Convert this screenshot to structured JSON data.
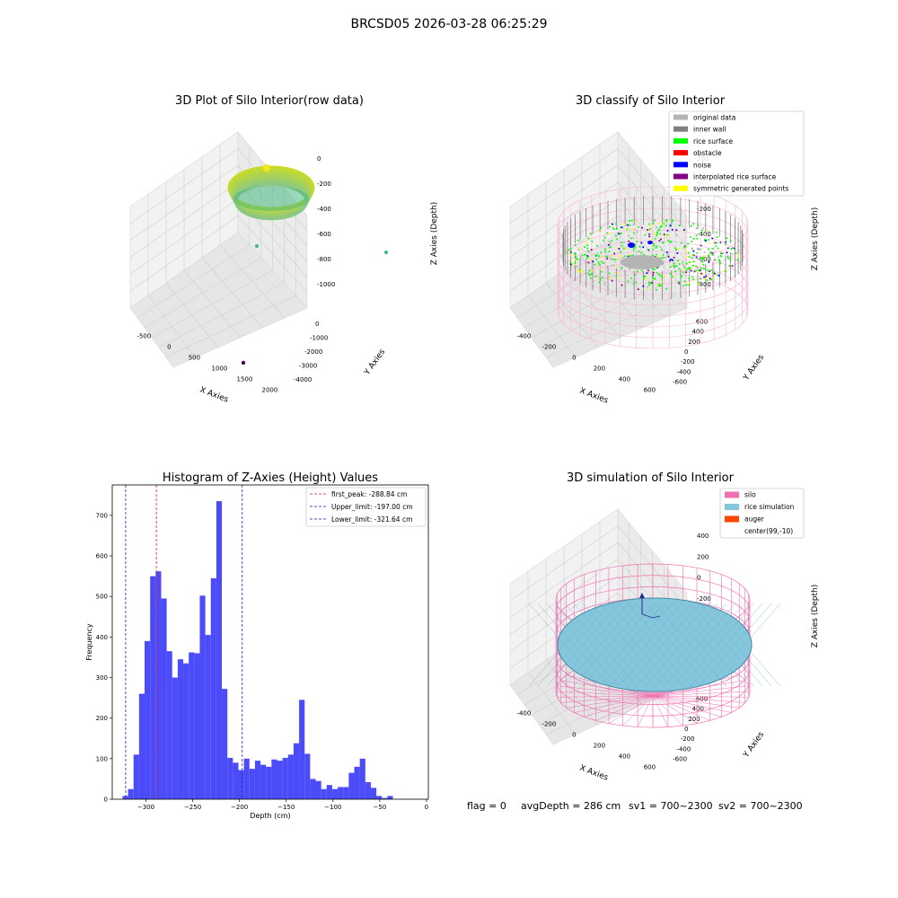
{
  "suptitle": "BRCSD05 2026-03-28 06:25:29",
  "footer": {
    "flag": "flag = 0",
    "avg_depth": "avgDepth = 286 cm",
    "sv1": "sv1 = 700~2300",
    "sv2": "sv2 = 700~2300"
  },
  "colors": {
    "hist_bar": "#4b4bfa",
    "peak_line": "#e41a1c",
    "limit_line": "#1f1fb4",
    "silo_wire": "#f06fb0",
    "rice_sim": "#86c6dc",
    "auger": "#ff4500",
    "original": "#b4b4b4",
    "inner_wall": "#808080",
    "rice_surface": "#00ff00",
    "obstacle": "#ff0000",
    "noise": "#0000ff",
    "interp": "#800080",
    "symmetric": "#ffff00"
  },
  "chart_data": [
    {
      "type": "scatter",
      "title": "3D Plot of Silo Interior(row data)",
      "xlabel": "X Axies",
      "ylabel": "Y Axies",
      "zlabel": "Z Axies (Depth)",
      "x_ticks": [
        "-500",
        "0",
        "500",
        "1000",
        "1500",
        "2000"
      ],
      "y_ticks": [
        "0",
        "-1000",
        "-2000",
        "-3000",
        "-4000"
      ],
      "z_ticks": [
        "0",
        "-200",
        "-400",
        "-600",
        "-800",
        "-1000"
      ],
      "outliers": [
        {
          "x": 100,
          "y": -1000,
          "z": -550
        },
        {
          "x": 1700,
          "y": -300,
          "z": -600
        },
        {
          "x": 1000,
          "y": -2500,
          "z": -1000
        }
      ]
    },
    {
      "type": "scatter",
      "title": "3D classify of Silo Interior",
      "xlabel": "X Axies",
      "ylabel": "Y Axies",
      "zlabel": "Z Axies (Depth)",
      "x_ticks": [
        "-400",
        "-200",
        "0",
        "200",
        "400",
        "600"
      ],
      "y_ticks": [
        "600",
        "400",
        "200",
        "0",
        "-200",
        "-400",
        "-600"
      ],
      "z_ticks": [
        "200",
        "0",
        "-200",
        "-400",
        "-600",
        "-800"
      ],
      "legend": [
        {
          "label": "original data",
          "color": "#b4b4b4"
        },
        {
          "label": "inner wall",
          "color": "#808080"
        },
        {
          "label": "rice surface",
          "color": "#00ff00"
        },
        {
          "label": "obstacle",
          "color": "#ff0000"
        },
        {
          "label": "noise",
          "color": "#0000ff"
        },
        {
          "label": "interpolated rice surface",
          "color": "#800080"
        },
        {
          "label": "symmetric generated points",
          "color": "#ffff00"
        }
      ],
      "legend_loc": "upper right"
    },
    {
      "type": "bar",
      "title": "Histogram of Z-Axies (Height) Values",
      "xlabel": "Depth (cm)",
      "ylabel": "Frequency",
      "xlim": [
        -336,
        2
      ],
      "ylim": [
        0,
        775
      ],
      "x_ticks": [
        -300,
        -250,
        -200,
        -150,
        -100,
        -50,
        0
      ],
      "y_ticks": [
        0,
        100,
        200,
        300,
        400,
        500,
        600,
        700
      ],
      "bin_start": -325,
      "bin_width": 5.9,
      "counts": [
        8,
        25,
        110,
        260,
        390,
        550,
        562,
        495,
        365,
        300,
        345,
        335,
        362,
        360,
        502,
        405,
        545,
        735,
        272,
        102,
        90,
        72,
        100,
        75,
        95,
        85,
        80,
        98,
        95,
        102,
        110,
        138,
        245,
        112,
        50,
        45,
        25,
        35,
        25,
        30,
        30,
        65,
        80,
        100,
        42,
        28,
        8,
        3,
        8
      ],
      "vlines": [
        {
          "x": -288.84,
          "label": "first_peak: -288.84 cm",
          "kind": "peak"
        },
        {
          "x": -197.0,
          "label": "Upper_limit: -197.00 cm",
          "kind": "limit"
        },
        {
          "x": -321.64,
          "label": "Lower_limit: -321.64 cm",
          "kind": "limit"
        }
      ],
      "legend_loc": "upper right"
    },
    {
      "type": "area",
      "title": "3D simulation of Silo Interior",
      "xlabel": "X Axies",
      "ylabel": "Y Axies",
      "zlabel": "Z Axies (Depth)",
      "x_ticks": [
        "-400",
        "-200",
        "0",
        "200",
        "400",
        "600"
      ],
      "y_ticks": [
        "600",
        "400",
        "200",
        "0",
        "-200",
        "-400",
        "-600"
      ],
      "z_ticks": [
        "400",
        "200",
        "0",
        "-200",
        "-400",
        "-600",
        "-800"
      ],
      "legend": [
        {
          "label": "silo",
          "color": "#f06fb0"
        },
        {
          "label": "rice simulation",
          "color": "#86c6dc"
        },
        {
          "label": "auger",
          "color": "#ff4500"
        },
        {
          "label": "center(99,-10)",
          "color": ""
        }
      ],
      "legend_loc": "upper right"
    }
  ]
}
